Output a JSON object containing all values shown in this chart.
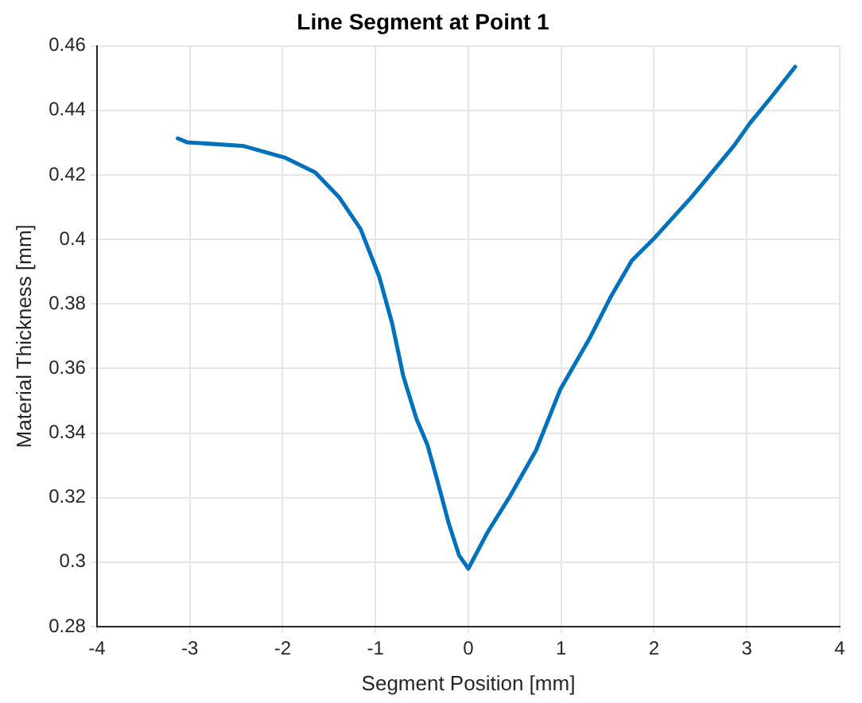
{
  "chart_data": {
    "type": "line",
    "title": "Line Segment at Point 1",
    "xlabel": "Segment Position [mm]",
    "ylabel": "Material Thickness [mm]",
    "xlim": [
      -4,
      4
    ],
    "xticks": [
      -4,
      -3,
      -2,
      -1,
      0,
      1,
      2,
      3,
      4
    ],
    "ylim": [
      0.28,
      0.46
    ],
    "yticks": [
      0.28,
      0.3,
      0.32,
      0.34,
      0.36,
      0.38,
      0.4,
      0.42,
      0.44,
      0.46
    ],
    "grid": true,
    "legend": false,
    "marker": "none",
    "line_style": "solid",
    "series": [
      {
        "color": "#0072bd",
        "x": [
          -3.13,
          -3.03,
          -2.43,
          -1.97,
          -1.65,
          -1.39,
          -1.16,
          -0.96,
          -0.82,
          -0.7,
          -0.56,
          -0.44,
          -0.33,
          -0.21,
          -0.1,
          0,
          0.21,
          0.44,
          0.73,
          0.99,
          1.3,
          1.53,
          1.76,
          1.99,
          2.4,
          2.86,
          3.03,
          3.26,
          3.52
        ],
        "values": [
          0.4313,
          0.4301,
          0.429,
          0.4253,
          0.4208,
          0.413,
          0.4032,
          0.3885,
          0.3739,
          0.3576,
          0.3445,
          0.3363,
          0.3249,
          0.3119,
          0.3021,
          0.298,
          0.3094,
          0.32,
          0.3347,
          0.3535,
          0.369,
          0.382,
          0.3934,
          0.4,
          0.413,
          0.429,
          0.4359,
          0.444,
          0.4535
        ]
      }
    ]
  }
}
